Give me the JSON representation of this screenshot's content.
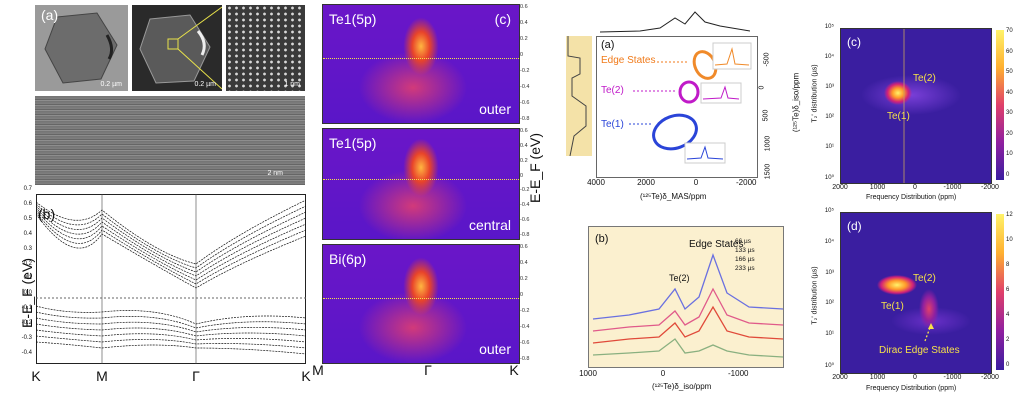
{
  "tem": {
    "panel_letter": "(a)",
    "scale_1": "0.2 µm",
    "scale_2": "0.2 µm",
    "scale_3": "1 nm",
    "scale_4": "2 nm"
  },
  "bands": {
    "panel_letter": "(b)",
    "y_label": "E-E_F (eV)",
    "y_ticks": [
      "0.7",
      "0.6",
      "0.5",
      "0.4",
      "0.3",
      "0.2",
      "0.1",
      "0.0",
      "-0.1",
      "-0.2",
      "-0.3",
      "-0.4"
    ],
    "k_labels": [
      "K",
      "M",
      "Γ",
      "K"
    ]
  },
  "arpes": {
    "panel_letter": "(c)",
    "panels": [
      {
        "orbital": "Te1(5p)",
        "position": "outer"
      },
      {
        "orbital": "Te1(5p)",
        "position": "central"
      },
      {
        "orbital": "Bi(6p)",
        "position": "outer"
      }
    ],
    "y_ticks": [
      "0.6",
      "0.4",
      "0.2",
      "0",
      "-0.2",
      "-0.4",
      "-0.6",
      "-0.8"
    ],
    "k_labels": [
      "M",
      "Γ",
      "K"
    ],
    "y_label": "E-E_F (eV)"
  },
  "nmr2d": {
    "panel_letter": "(a)",
    "labels": [
      "Edge States",
      "Te(2)",
      "Te(1)"
    ],
    "inset_ticks": "2000 0-2000",
    "x_ticks": [
      "4000",
      "2000",
      "0",
      "-2000"
    ],
    "x_label": "(¹²⁵Te)δ_MAS/ppm",
    "y_ticks": [
      "-500",
      "0",
      "500",
      "1000",
      "1500"
    ],
    "y_label": "(¹²⁵Te)δ_iso/ppm"
  },
  "nmr1d": {
    "panel_letter": "(b)",
    "title": "Edge States",
    "peak_label": "Te(2)",
    "legend": [
      "66 µs",
      "133 µs",
      "166 µs",
      "233 µs"
    ],
    "x_ticks": [
      "1000",
      "0",
      "-1000"
    ],
    "x_label": "(¹²⁵Te)δ_iso/ppm"
  },
  "t2c": {
    "panel_letter": "(c)",
    "labels": [
      "Te(2)",
      "Te(1)"
    ],
    "y_ticks": [
      "10⁵",
      "10⁴",
      "10³",
      "10²",
      "10¹",
      "10⁰"
    ],
    "x_ticks": [
      "2000",
      "1000",
      "0",
      "-1000",
      "-2000"
    ],
    "x_label": "Frequency Distribution (ppm)",
    "y_label": "T₂' distribution (µs)",
    "cbar_ticks": [
      "70",
      "60",
      "50",
      "40",
      "30",
      "20",
      "10",
      "0"
    ]
  },
  "t2d": {
    "panel_letter": "(d)",
    "labels": [
      "Te(2)",
      "Te(1)",
      "Dirac Edge States"
    ],
    "y_ticks": [
      "10⁵",
      "10⁴",
      "10³",
      "10²",
      "10¹",
      "10⁰"
    ],
    "x_ticks": [
      "2000",
      "1000",
      "0",
      "-1000",
      "-2000"
    ],
    "x_label": "Frequency Distribution (ppm)",
    "y_label": "T₂' distribution (µs)",
    "cbar_ticks": [
      "12",
      "10",
      "8",
      "6",
      "4",
      "2",
      "0"
    ]
  },
  "colors": {
    "arpes_bg": "#5a16c8",
    "arpes_hot": "#ffb640",
    "cbar_top": "#fff36a",
    "cbar_bottom": "#2a1a8a",
    "nmr_bg": "#fbf0cf"
  }
}
